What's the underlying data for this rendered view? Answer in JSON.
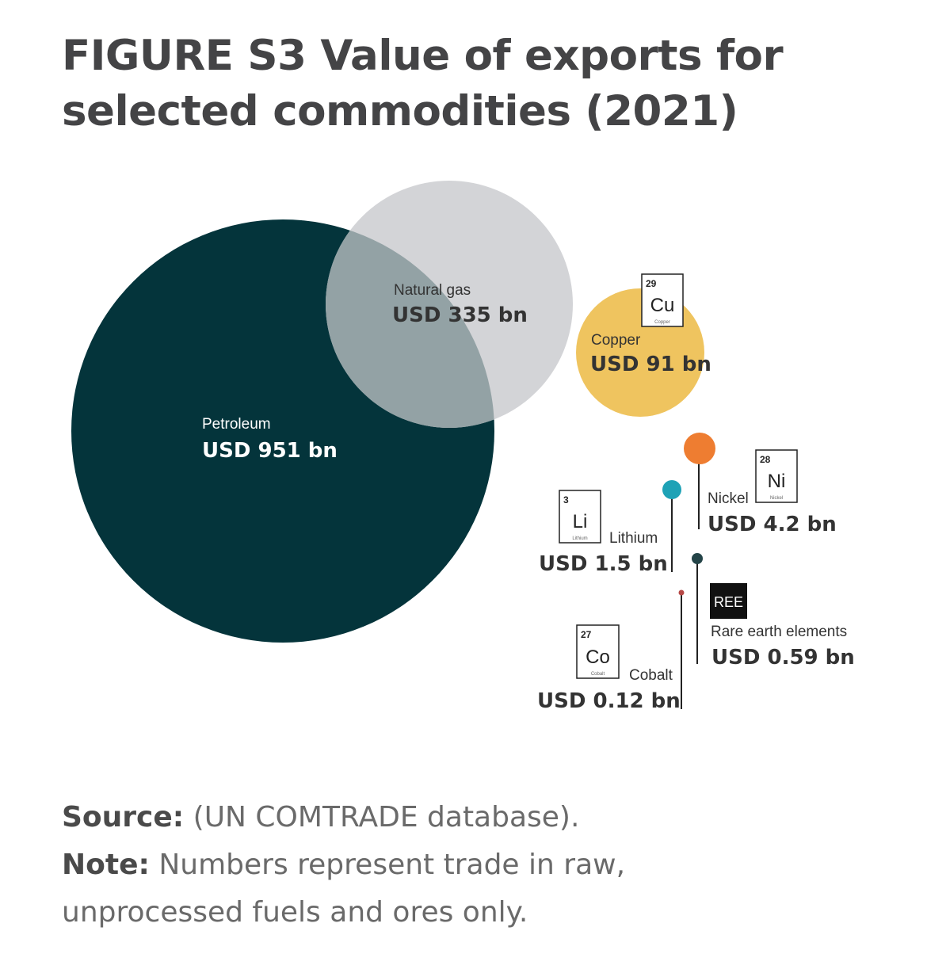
{
  "title": {
    "line1": "FIGURE S3 Value of exports for",
    "line2": "selected commodities (2021)"
  },
  "colors": {
    "petroleum": "#04343b",
    "natural_gas": "#d3d4d7",
    "overlap": "#93a2a5",
    "copper": "#efc45f",
    "nickel": "#ee7d31",
    "lithium": "#1ea2b6",
    "ree": "#244448",
    "cobalt": "#b64846"
  },
  "chart_data": {
    "type": "bubble",
    "title": "FIGURE S3 Value of exports for selected commodities (2021)",
    "unit": "USD bn",
    "series": [
      {
        "name": "Petroleum",
        "value": 951,
        "label": "USD 951 bn"
      },
      {
        "name": "Natural gas",
        "value": 335,
        "label": "USD 335 bn"
      },
      {
        "name": "Copper",
        "value": 91,
        "label": "USD 91 bn",
        "element": {
          "number": "29",
          "symbol": "Cu",
          "name": "Copper"
        }
      },
      {
        "name": "Nickel",
        "value": 4.2,
        "label": "USD 4.2 bn",
        "element": {
          "number": "28",
          "symbol": "Ni",
          "name": "Nickel"
        }
      },
      {
        "name": "Lithium",
        "value": 1.5,
        "label": "USD 1.5 bn",
        "element": {
          "number": "3",
          "symbol": "Li",
          "name": "Lithium"
        }
      },
      {
        "name": "Rare earth elements",
        "value": 0.59,
        "label": "USD 0.59 bn",
        "element": {
          "symbol": "REE"
        }
      },
      {
        "name": "Cobalt",
        "value": 0.12,
        "label": "USD 0.12 bn",
        "element": {
          "number": "27",
          "symbol": "Co",
          "name": "Cobalt"
        }
      }
    ]
  },
  "notes": {
    "source_label": "Source:",
    "source_text": " (UN COMTRADE database).",
    "note_label": "Note:",
    "note_text": " Numbers represent trade in raw, unprocessed fuels and ores only."
  }
}
